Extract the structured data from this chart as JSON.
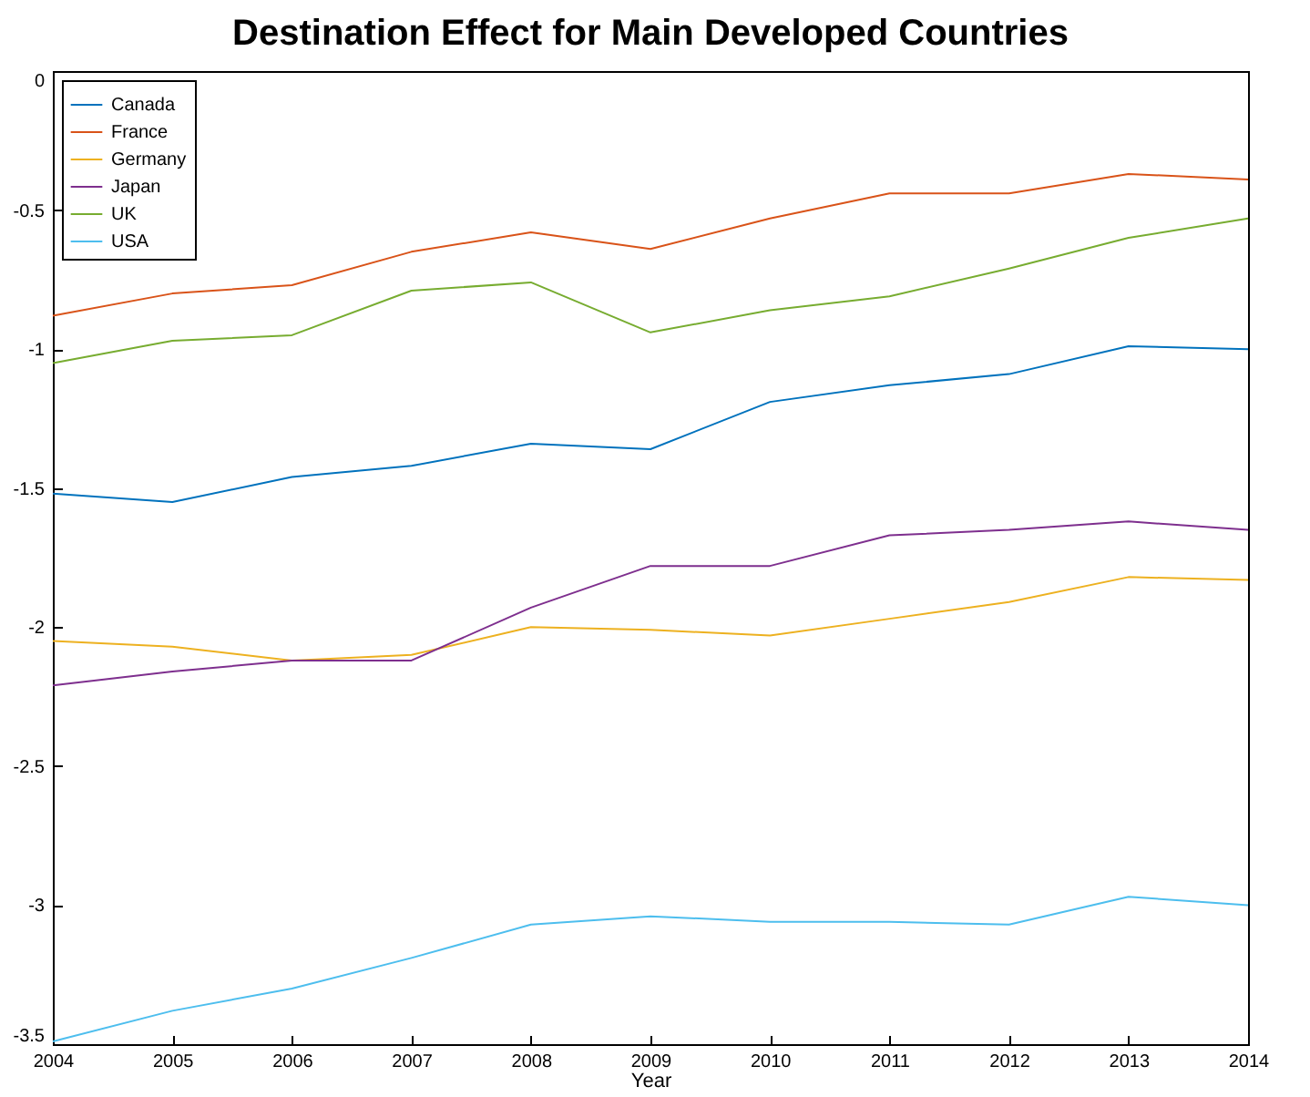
{
  "chart_data": {
    "type": "line",
    "title": "Destination Effect for Main Developed Countries",
    "xlabel": "Year",
    "x": [
      2004,
      2005,
      2006,
      2007,
      2008,
      2009,
      2010,
      2011,
      2012,
      2013,
      2014
    ],
    "series": [
      {
        "name": "Canada",
        "color": "#0072bd",
        "values": [
          -1.52,
          -1.55,
          -1.46,
          -1.42,
          -1.34,
          -1.36,
          -1.19,
          -1.13,
          -1.09,
          -0.99,
          -1.0
        ]
      },
      {
        "name": "France",
        "color": "#d95319",
        "values": [
          -0.88,
          -0.8,
          -0.77,
          -0.65,
          -0.58,
          -0.64,
          -0.53,
          -0.44,
          -0.44,
          -0.37,
          -0.39
        ]
      },
      {
        "name": "Germany",
        "color": "#edb120",
        "values": [
          -2.05,
          -2.07,
          -2.12,
          -2.1,
          -2.0,
          -2.01,
          -2.03,
          -1.97,
          -1.91,
          -1.82,
          -1.83
        ]
      },
      {
        "name": "Japan",
        "color": "#7e2f8e",
        "values": [
          -2.21,
          -2.16,
          -2.12,
          -2.12,
          -1.93,
          -1.78,
          -1.78,
          -1.67,
          -1.65,
          -1.62,
          -1.65
        ]
      },
      {
        "name": "UK",
        "color": "#77ac30",
        "values": [
          -1.05,
          -0.97,
          -0.95,
          -0.79,
          -0.76,
          -0.94,
          -0.86,
          -0.81,
          -0.71,
          -0.6,
          -0.53
        ]
      },
      {
        "name": "USA",
        "color": "#4dbeee",
        "values": [
          -3.49,
          -3.38,
          -3.3,
          -3.19,
          -3.07,
          -3.04,
          -3.06,
          -3.06,
          -3.07,
          -2.97,
          -3.0
        ]
      }
    ],
    "xlim": [
      2004,
      2014
    ],
    "xticks": [
      2004,
      2005,
      2006,
      2007,
      2008,
      2009,
      2010,
      2011,
      2012,
      2013,
      2014
    ],
    "ylim": [
      -3.5,
      0
    ],
    "yticks": [
      0,
      -0.5,
      -1,
      -1.5,
      -2,
      -2.5,
      -3,
      -3.5
    ],
    "grid": false,
    "legend": "top left",
    "line_style": "solid"
  }
}
